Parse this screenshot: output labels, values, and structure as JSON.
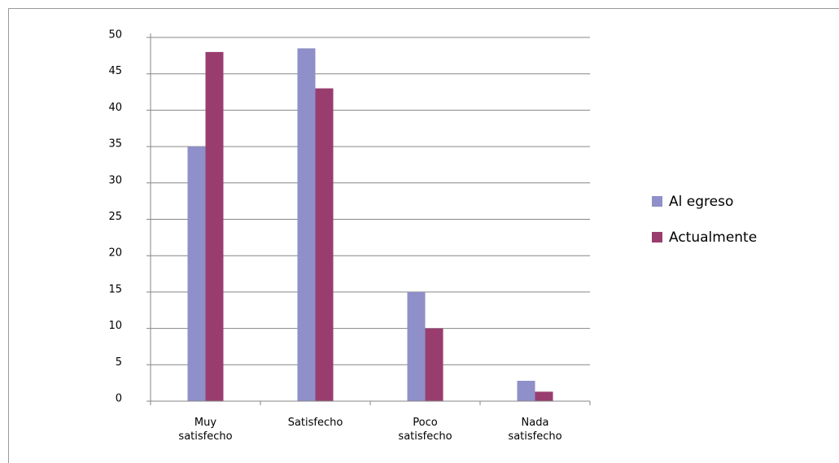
{
  "chart_data": {
    "type": "bar",
    "categories": [
      "Muy satisfecho",
      "Satisfecho",
      "Poco satisfecho",
      "Nada satisfecho"
    ],
    "series": [
      {
        "name": "Al egreso",
        "color": "#8f8fc9",
        "values": [
          35,
          48.5,
          15,
          2.8
        ]
      },
      {
        "name": "Actualmente",
        "color": "#993d6e",
        "values": [
          48,
          43,
          10,
          1.3
        ]
      }
    ],
    "ylim": [
      0,
      50
    ],
    "yticks": [
      0,
      5,
      10,
      15,
      20,
      25,
      30,
      35,
      40,
      45,
      50
    ],
    "grid": true,
    "legend": "right"
  }
}
